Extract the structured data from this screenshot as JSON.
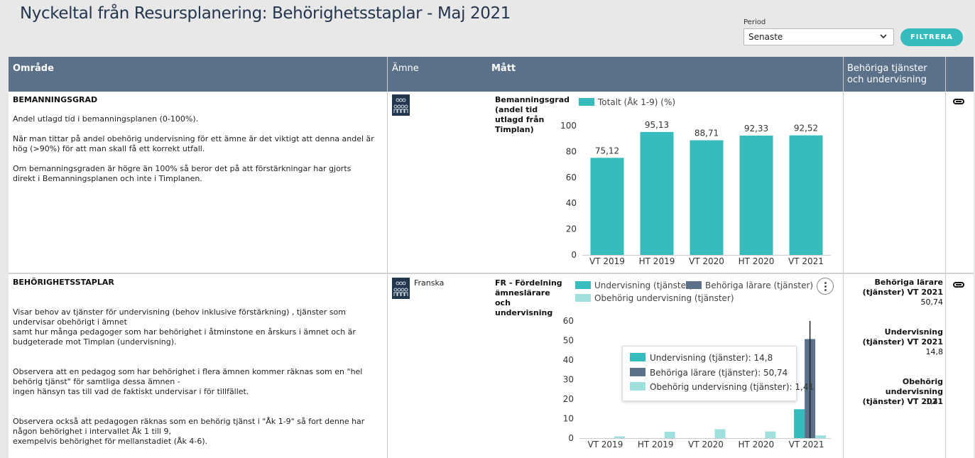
{
  "page": {
    "title": "Nyckeltal från Resursplanering: Behörighetsstaplar  - Maj 2021"
  },
  "filter": {
    "period_label": "Period",
    "period_value": "Senaste",
    "button_label": "FILTRERA"
  },
  "columns": {
    "area": "Område",
    "subject": "Ämne",
    "measure": "Mått",
    "kpi": "Behöriga tjänster och undervisning"
  },
  "colors": {
    "teal": "#36bcbd",
    "slate": "#5a7189",
    "light_teal": "#9fe0de",
    "header": "#5a7189",
    "title": "#23364e"
  },
  "rows": [
    {
      "title": "BEMANNINGSGRAD",
      "paragraphs": [
        "Andel utlagd tid i bemanningsplanen (0-100%).",
        "När man tittar på andel obehörig undervisning för ett ämne är det viktigt att denna andel är hög (>90%) för att man skall få ett korrekt utfall.",
        "Om bemanningsgraden är högre än 100% så beror det på att förstärkningar har gjorts direkt i Bemanningsplanen och inte i Timplanen."
      ],
      "subject": "",
      "subject_icon": "people-group-icon",
      "measure": "Bemanningsgrad (andel tid utlagd från Timplan)",
      "link_icon": "link-icon"
    },
    {
      "title": "BEHÖRIGHETSSTAPLAR",
      "paragraphs": [
        "Visar behov av tjänster för undervisning (behov inklusive förstärkning) , tjänster som undervisar obehörigt i ämnet\nsamt hur många pedagoger som har behörighet i åtminstone en årskurs i ämnet och är budgeterade mot Timplan (undervisning).",
        "Observera att en pedagog som har behörighet i flera ämnen kommer räknas som en \"hel behörig tjänst\" för samtliga dessa ämnen -\ningen hänsyn tas till vad de faktiskt undervisar i för tillfället.",
        "Observera också att pedagogen räknas som en behörig tjänst i \"Åk 1-9\" så fort denne har någon behörighet i intervallet Åk 1 till 9,\nexempelvis behörighet för mellanstadiet (Åk 4-6)."
      ],
      "subject": "Franska",
      "subject_icon": "people-group-icon",
      "measure": "FR - Fördelning ämneslärare och undervisning",
      "link_icon": "link-icon",
      "kpis": [
        {
          "title": "Behöriga lärare (tjänster) VT 2021",
          "value": "50,74"
        },
        {
          "title": "Undervisning (tjänster) VT 2021",
          "value": "14,8"
        },
        {
          "title": "Obehörig undervisning (tjänster) VT 2021",
          "value": "1,41"
        }
      ]
    }
  ],
  "chart_data": [
    {
      "type": "bar",
      "categories": [
        "VT 2019",
        "HT 2019",
        "VT 2020",
        "HT 2020",
        "VT 2021"
      ],
      "series": [
        {
          "name": "Totalt (Åk 1-9) (%)",
          "values": [
            75.12,
            95.13,
            88.71,
            92.33,
            92.52
          ],
          "color": "#36bcbd"
        }
      ],
      "data_labels": [
        "75,12",
        "95,13",
        "88,71",
        "92,33",
        "92,52"
      ],
      "yticks": [
        0,
        20,
        40,
        60,
        80,
        100
      ],
      "ylim": [
        0,
        100
      ],
      "legend": "top",
      "grid": false
    },
    {
      "type": "bar",
      "categories": [
        "VT 2019",
        "HT 2019",
        "VT 2020",
        "HT 2020",
        "VT 2021"
      ],
      "series": [
        {
          "name": "Undervisning (tjänster)",
          "values": [
            0,
            0,
            0,
            0,
            14.8
          ],
          "color": "#36bcbd"
        },
        {
          "name": "Behöriga lärare (tjänster)",
          "values": [
            0,
            0,
            0,
            0,
            50.74
          ],
          "color": "#5a7189"
        },
        {
          "name": "Obehörig undervisning (tjänster)",
          "values": [
            0.9,
            3.3,
            4.6,
            3.4,
            1.41
          ],
          "color": "#9fe0de"
        }
      ],
      "yticks": [
        0,
        10,
        20,
        30,
        40,
        50,
        60
      ],
      "ylim": [
        0,
        60
      ],
      "legend": "top",
      "grid": false,
      "tooltip": {
        "category": "VT 2021",
        "items": [
          {
            "label": "Undervisning (tjänster): 14,8",
            "color": "#36bcbd"
          },
          {
            "label": "Behöriga lärare (tjänster): 50,74",
            "color": "#5a7189"
          },
          {
            "label": "Obehörig undervisning (tjänster): 1,41",
            "color": "#9fe0de"
          }
        ]
      }
    }
  ]
}
